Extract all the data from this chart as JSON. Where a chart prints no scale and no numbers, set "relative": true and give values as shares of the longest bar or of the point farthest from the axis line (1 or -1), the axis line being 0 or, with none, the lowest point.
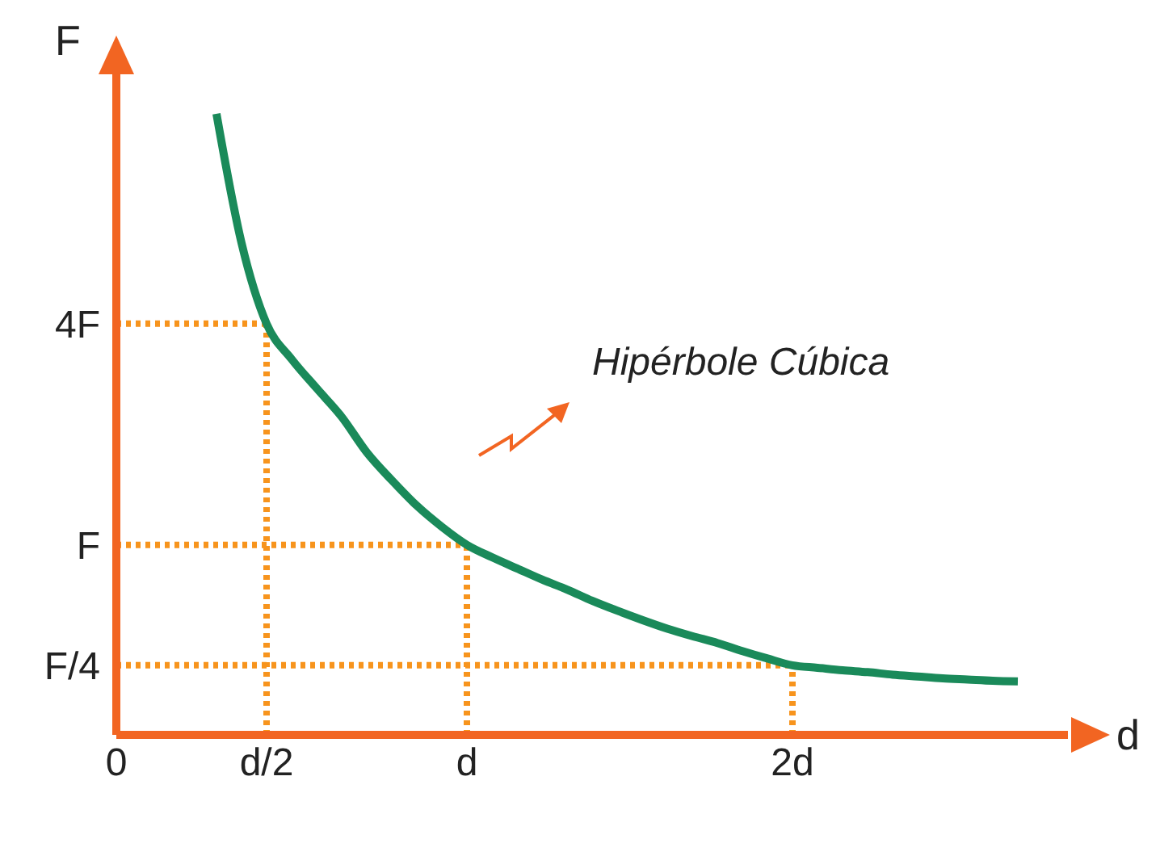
{
  "chart_data": {
    "type": "line",
    "xlabel": "d",
    "ylabel": "F",
    "relative": true,
    "annotations": [
      "Hipérbole Cúbica"
    ],
    "categories": [
      "0",
      null,
      null,
      null,
      null,
      null,
      "d/2",
      null,
      null,
      null,
      null,
      null,
      null,
      null,
      "d",
      null,
      null,
      null,
      null,
      null,
      null,
      null,
      null,
      null,
      null,
      null,
      null,
      "2d",
      null,
      null,
      null,
      null,
      null,
      null,
      null,
      null,
      null
    ],
    "series": [
      {
        "color": "#1a8a5a",
        "values": [
          null,
          null,
          null,
          null,
          1,
          0.792,
          0.662,
          0.605,
          0.558,
          0.512,
          0.455,
          0.41,
          0.369,
          0.335,
          0.306,
          0.286,
          0.268,
          0.25,
          0.234,
          0.216,
          0.2,
          0.185,
          0.171,
          0.159,
          0.148,
          0.135,
          0.123,
          0.112,
          0.108,
          0.104,
          0.101,
          0.097,
          0.094,
          0.091,
          0.089,
          0.087,
          0.086
        ]
      }
    ],
    "ref_lines": [
      {
        "axis": "y",
        "value": 0.662,
        "label": "4F",
        "color": "#f7941d",
        "line_style": "dotted"
      },
      {
        "axis": "y",
        "value": 0.306,
        "label": "F",
        "color": "#f7941d",
        "line_style": "dotted"
      },
      {
        "axis": "y",
        "value": 0.112,
        "label": "F/4",
        "color": "#f7941d",
        "line_style": "dotted"
      },
      {
        "axis": "x",
        "value": "d/2",
        "color": "#f7941d",
        "line_style": "dotted"
      },
      {
        "axis": "x",
        "value": "d",
        "color": "#f7941d",
        "line_style": "dotted"
      },
      {
        "axis": "x",
        "value": "2d",
        "color": "#f7941d",
        "line_style": "dotted"
      }
    ],
    "grid": false,
    "legend": false,
    "marker": "none",
    "line_style": "solid"
  }
}
